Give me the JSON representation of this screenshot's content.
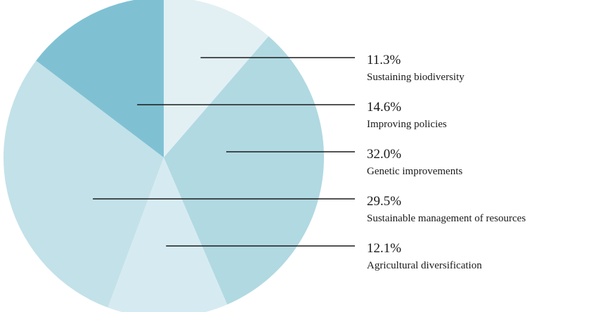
{
  "chart_data": {
    "type": "pie",
    "title": "",
    "slices": [
      {
        "label": "Sustaining biodiversity",
        "value": 11.3,
        "value_label": "11.3%",
        "color": "#e2f0f4"
      },
      {
        "label": "Genetic improvements",
        "value": 32.0,
        "value_label": "32.0%",
        "color": "#b1d9e2"
      },
      {
        "label": "Agricultural diversification",
        "value": 12.1,
        "value_label": "12.1%",
        "color": "#d6ebf1"
      },
      {
        "label": "Sustainable management of resources",
        "value": 29.5,
        "value_label": "29.5%",
        "color": "#c3e1e9"
      },
      {
        "label": "Improving policies",
        "value": 14.6,
        "value_label": "14.6%",
        "color": "#7fc1d3"
      }
    ],
    "legend_order": [
      "Sustaining biodiversity",
      "Improving policies",
      "Genetic improvements",
      "Sustainable management of resources",
      "Agricultural diversification"
    ]
  }
}
